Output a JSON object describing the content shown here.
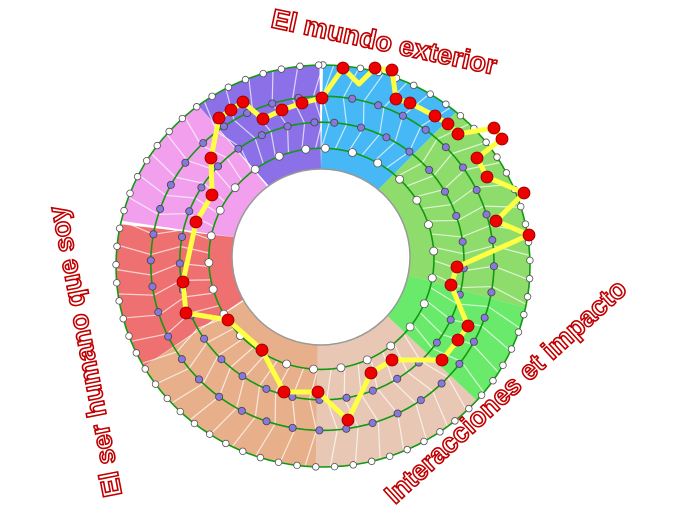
{
  "labels": {
    "top": "El mundo exterior",
    "left": "El ser humano que soy",
    "bottom_right": "Interacciones et impacto"
  },
  "colors": {
    "title_text": "#c00000",
    "ring_lines": "#119911",
    "path": "#ffff44",
    "path_nodes": "#ee0000",
    "inner_nodes": "#8877dd",
    "outer_nodes": "#ffffff",
    "sectors": {
      "blue": "#45b8f5",
      "green_upper": "#8edc6c",
      "green_lower": "#6aea6a",
      "beige": "#e8c8b4",
      "orange": "#e8b08a",
      "red": "#ef7070",
      "pink": "#f2a0ee",
      "purple": "#8b70e8"
    }
  }
}
